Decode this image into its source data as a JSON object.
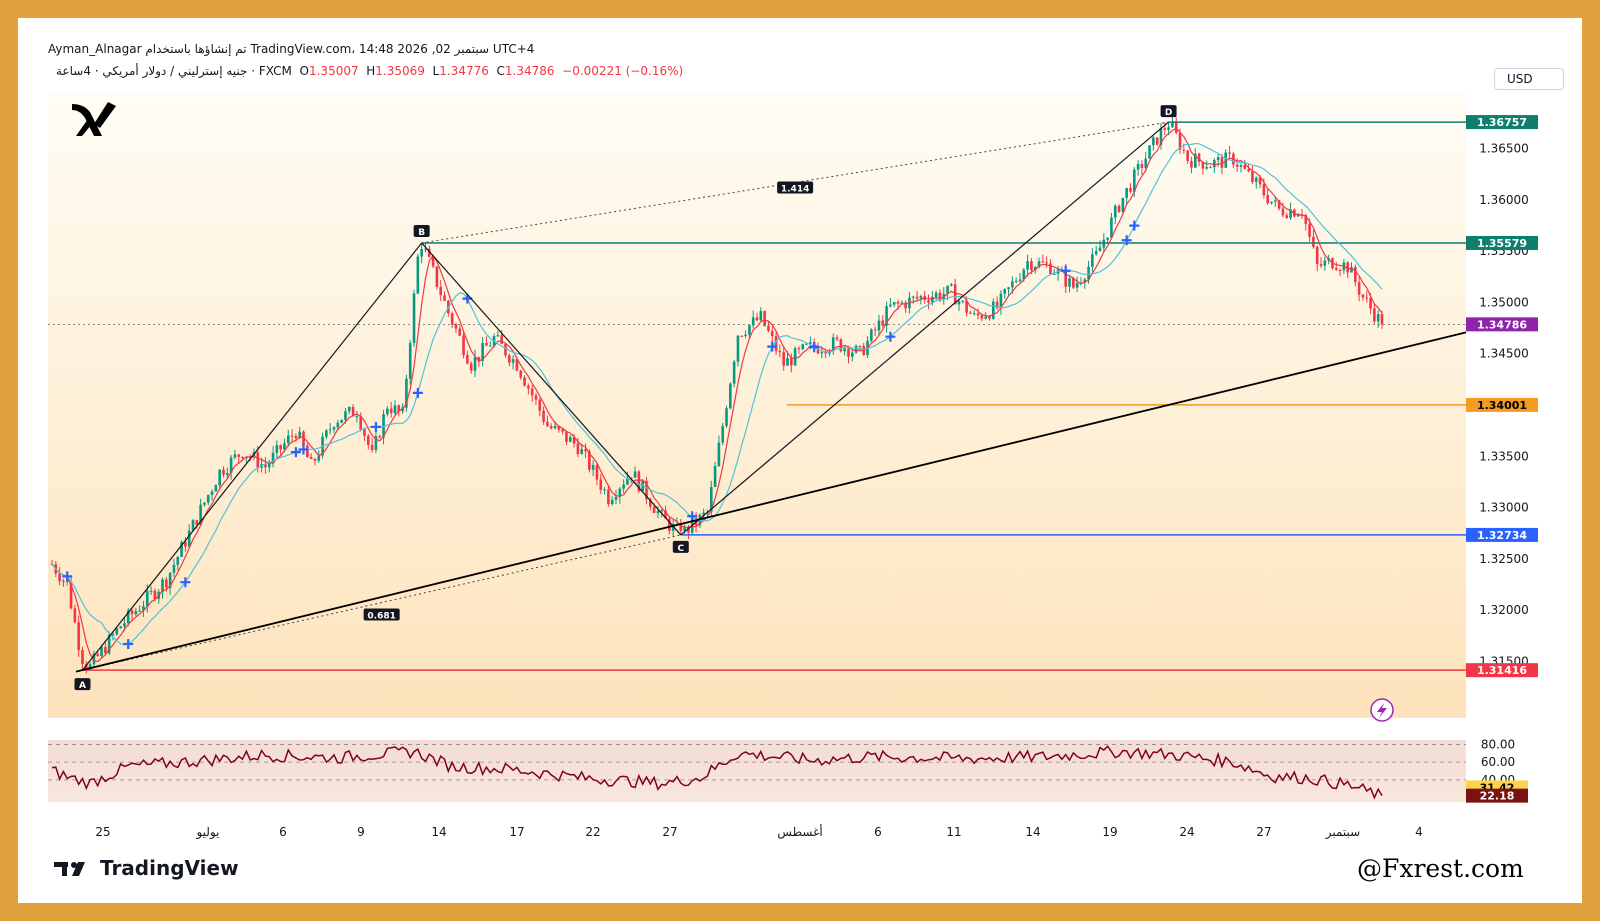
{
  "header": {
    "line1": "Ayman_Alnagar تم إنشاؤها باستخدام TradingView.com، 14:48 2026 ,02 سبتمبر UTC+4",
    "symbol": "جنيه إسترليني / دولار أمريكي · 4ساعة · FXCM",
    "open_label": "O",
    "open": "1.35007",
    "high_label": "H",
    "high": "1.35069",
    "low_label": "L",
    "low": "1.34776",
    "close_label": "C",
    "close": "1.34786",
    "change": "−0.00221 (−0.16%)"
  },
  "currency_button": "USD",
  "brand": "TradingView",
  "watermark": "@Fxrest.com",
  "colors": {
    "accent_frame": "#e1a23e",
    "candle_up": "#089981",
    "candle_down": "#f23645",
    "ma_fast": "#f23645",
    "ma_slow": "#4fc3d9",
    "rsi": "#800020"
  },
  "chart_data": {
    "type": "candlestick",
    "price_axis": {
      "ticks": [
        "1.36500",
        "1.36000",
        "1.35500",
        "1.35000",
        "1.34500",
        "1.34000",
        "1.33500",
        "1.33000",
        "1.32500",
        "1.32000",
        "1.31500"
      ],
      "range": [
        1.3095,
        1.3705
      ]
    },
    "time_axis": {
      "labels": [
        "25",
        "يوليو",
        "6",
        "9",
        "14",
        "17",
        "22",
        "27",
        "أغسطس",
        "6",
        "11",
        "14",
        "19",
        "24",
        "27",
        "سبتمبر",
        "4"
      ]
    },
    "price_levels": [
      {
        "label": "1.36757",
        "value": 1.36757,
        "color": "#0e7e6f"
      },
      {
        "label": "1.35579",
        "value": 1.35579,
        "color": "#0e7e6f"
      },
      {
        "label": "1.34786",
        "value": 1.34786,
        "color": "#8e24aa"
      },
      {
        "label": "1.34001",
        "value": 1.34001,
        "color": "#f59a23"
      },
      {
        "label": "1.32734",
        "value": 1.32734,
        "color": "#2962ff"
      },
      {
        "label": "1.31416",
        "value": 1.31416,
        "color": "#f23645"
      }
    ],
    "pattern_points": [
      {
        "label": "A",
        "value": 1.31416
      },
      {
        "label": "B",
        "value": 1.35579
      },
      {
        "label": "C",
        "value": 1.32734
      },
      {
        "label": "D",
        "value": 1.36757
      }
    ],
    "ratios": [
      {
        "label": "1.414",
        "between": "B-D"
      },
      {
        "label": "0.681",
        "between": "A-C"
      }
    ],
    "rsi": {
      "ticks": [
        "80.00",
        "60.00",
        "40.00"
      ],
      "value_1": "31.42",
      "value_2": "22.18",
      "range": [
        15,
        85
      ]
    }
  }
}
